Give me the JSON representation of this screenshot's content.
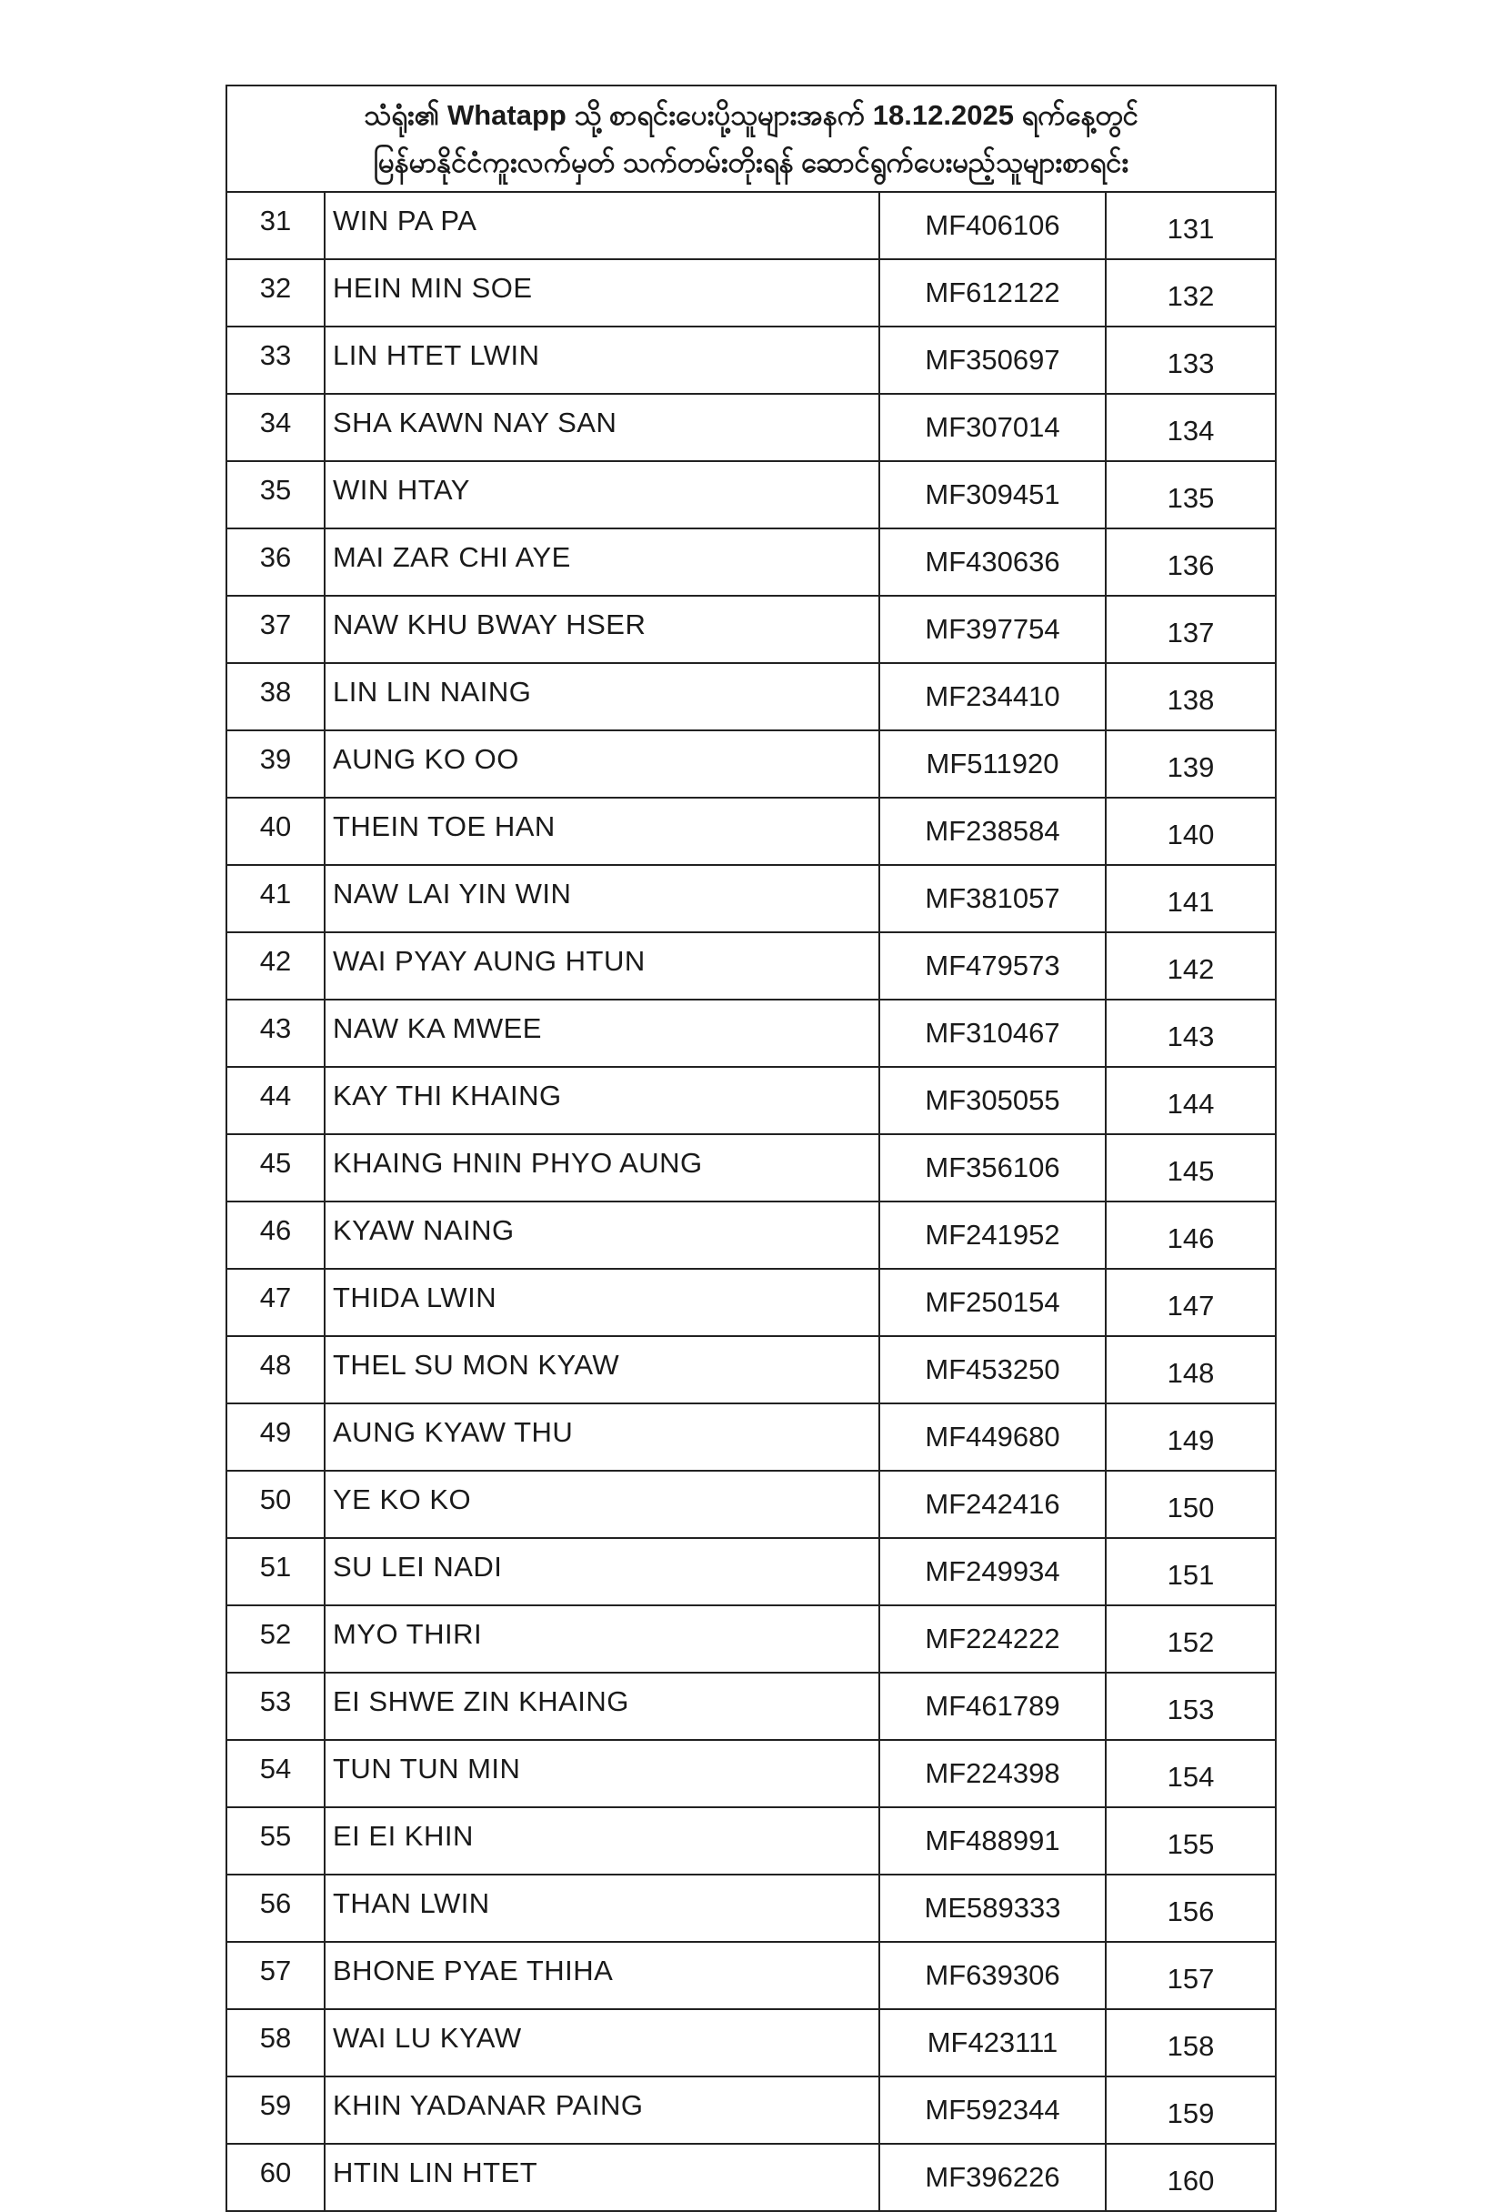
{
  "header": {
    "line1": "သံရုံး၏ Whatapp သို့ စာရင်းပေးပို့သူများအနက် 18.12.2025 ရက်နေ့တွင်",
    "line2": "မြန်မာနိုင်ငံကူးလက်မှတ် သက်တမ်းတိုးရန် ဆောင်ရွက်ပေးမည့်သူများစာရင်း"
  },
  "rows": [
    {
      "no": "31",
      "name": "WIN PA PA",
      "passport": "MF406106",
      "seq": "131"
    },
    {
      "no": "32",
      "name": "HEIN MIN SOE",
      "passport": "MF612122",
      "seq": "132"
    },
    {
      "no": "33",
      "name": "LIN HTET LWIN",
      "passport": "MF350697",
      "seq": "133"
    },
    {
      "no": "34",
      "name": "SHA KAWN NAY SAN",
      "passport": "MF307014",
      "seq": "134"
    },
    {
      "no": "35",
      "name": "WIN HTAY",
      "passport": "MF309451",
      "seq": "135"
    },
    {
      "no": "36",
      "name": "MAI ZAR CHI AYE",
      "passport": "MF430636",
      "seq": "136"
    },
    {
      "no": "37",
      "name": "NAW KHU BWAY HSER",
      "passport": "MF397754",
      "seq": "137"
    },
    {
      "no": "38",
      "name": "LIN LIN NAING",
      "passport": "MF234410",
      "seq": "138"
    },
    {
      "no": "39",
      "name": "AUNG KO OO",
      "passport": "MF511920",
      "seq": "139"
    },
    {
      "no": "40",
      "name": "THEIN TOE HAN",
      "passport": "MF238584",
      "seq": "140"
    },
    {
      "no": "41",
      "name": "NAW LAI YIN WIN",
      "passport": "MF381057",
      "seq": "141"
    },
    {
      "no": "42",
      "name": "WAI PYAY AUNG HTUN",
      "passport": "MF479573",
      "seq": "142"
    },
    {
      "no": "43",
      "name": "NAW KA MWEE",
      "passport": "MF310467",
      "seq": "143"
    },
    {
      "no": "44",
      "name": "KAY THI KHAING",
      "passport": "MF305055",
      "seq": "144"
    },
    {
      "no": "45",
      "name": "KHAING HNIN PHYO AUNG",
      "passport": "MF356106",
      "seq": "145"
    },
    {
      "no": "46",
      "name": "KYAW NAING",
      "passport": "MF241952",
      "seq": "146"
    },
    {
      "no": "47",
      "name": "THIDA LWIN",
      "passport": "MF250154",
      "seq": "147"
    },
    {
      "no": "48",
      "name": "THEL SU MON KYAW",
      "passport": "MF453250",
      "seq": "148"
    },
    {
      "no": "49",
      "name": "AUNG KYAW THU",
      "passport": "MF449680",
      "seq": "149"
    },
    {
      "no": "50",
      "name": "YE KO KO",
      "passport": "MF242416",
      "seq": "150"
    },
    {
      "no": "51",
      "name": "SU LEI NADI",
      "passport": "MF249934",
      "seq": "151"
    },
    {
      "no": "52",
      "name": "MYO THIRI",
      "passport": "MF224222",
      "seq": "152"
    },
    {
      "no": "53",
      "name": "EI SHWE ZIN KHAING",
      "passport": "MF461789",
      "seq": "153"
    },
    {
      "no": "54",
      "name": "TUN TUN MIN",
      "passport": "MF224398",
      "seq": "154"
    },
    {
      "no": "55",
      "name": "EI EI KHIN",
      "passport": "MF488991",
      "seq": "155"
    },
    {
      "no": "56",
      "name": "THAN LWIN",
      "passport": "ME589333",
      "seq": "156"
    },
    {
      "no": "57",
      "name": "BHONE PYAE THIHA",
      "passport": "MF639306",
      "seq": "157"
    },
    {
      "no": "58",
      "name": "WAI LU KYAW",
      "passport": "MF423111",
      "seq": "158"
    },
    {
      "no": "59",
      "name": "KHIN YADANAR PAING",
      "passport": "MF592344",
      "seq": "159"
    },
    {
      "no": "60",
      "name": "HTIN LIN HTET",
      "passport": "MF396226",
      "seq": "160"
    }
  ]
}
